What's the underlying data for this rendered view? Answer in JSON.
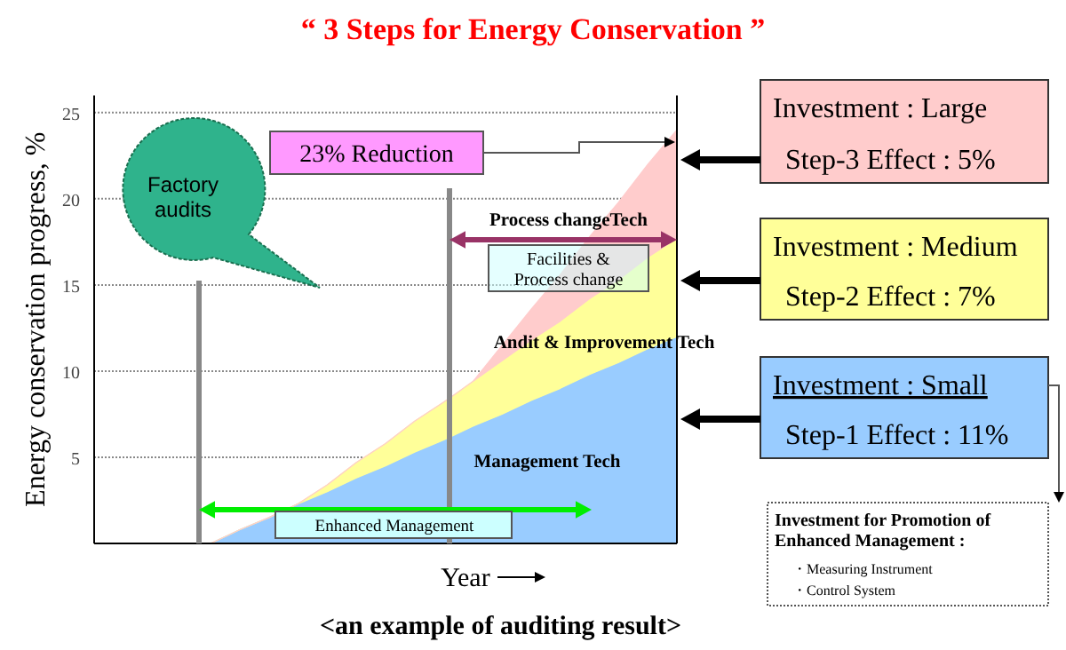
{
  "chart_data": {
    "type": "area",
    "stacked": true,
    "title": "“ 3 Steps for Energy Conservation ”",
    "xlabel": "Year",
    "ylabel": "Energy conservation progress, %",
    "categories": [
      null,
      null,
      null,
      null,
      null,
      null,
      null,
      null,
      null,
      null,
      null,
      null,
      null,
      null,
      null,
      null,
      null,
      null,
      null,
      null,
      null
    ],
    "ylim": [
      0,
      26
    ],
    "yticks": [
      5,
      10,
      15,
      20,
      25
    ],
    "grid": "y",
    "series": [
      {
        "name": "Management Tech",
        "color": "#99ccff",
        "values": [
          0,
          0,
          0,
          0,
          0,
          0.8,
          1.5,
          2.3,
          3,
          3.8,
          4.5,
          5.3,
          6,
          6.8,
          7.5,
          8.3,
          9,
          9.8,
          10.5,
          11.3,
          12
        ]
      },
      {
        "name": "Andit & Improvement Tech",
        "color": "#ffff99",
        "values": [
          0,
          0,
          0,
          0,
          0,
          0,
          0,
          0,
          0.4,
          0.9,
          1.3,
          1.8,
          2.2,
          2.6,
          3.1,
          3.5,
          3.9,
          4.4,
          4.8,
          5.3,
          5.7
        ]
      },
      {
        "name": "Process changeTech",
        "color": "#ffcccc",
        "values": [
          0,
          0,
          0,
          0,
          0,
          0,
          0,
          0,
          0,
          0,
          0,
          0,
          0,
          0,
          0.9,
          1.8,
          2.7,
          3.6,
          4.5,
          5.4,
          6.3
        ]
      }
    ],
    "annotations": [
      "23% Reduction",
      "Factory audits",
      "Facilities & Process change",
      "Enhanced Management",
      "Investment : Large",
      "Step-3   Effect : 5%",
      "Investment : Medium",
      "Step-2   Effect : 7%",
      "Investment : Small",
      "Step-1  Effect : 11%",
      "Investment for Promotion of Enhanced Management :",
      "・Measuring Instrument",
      "・Control System",
      "<an example of auditing result>"
    ]
  }
}
